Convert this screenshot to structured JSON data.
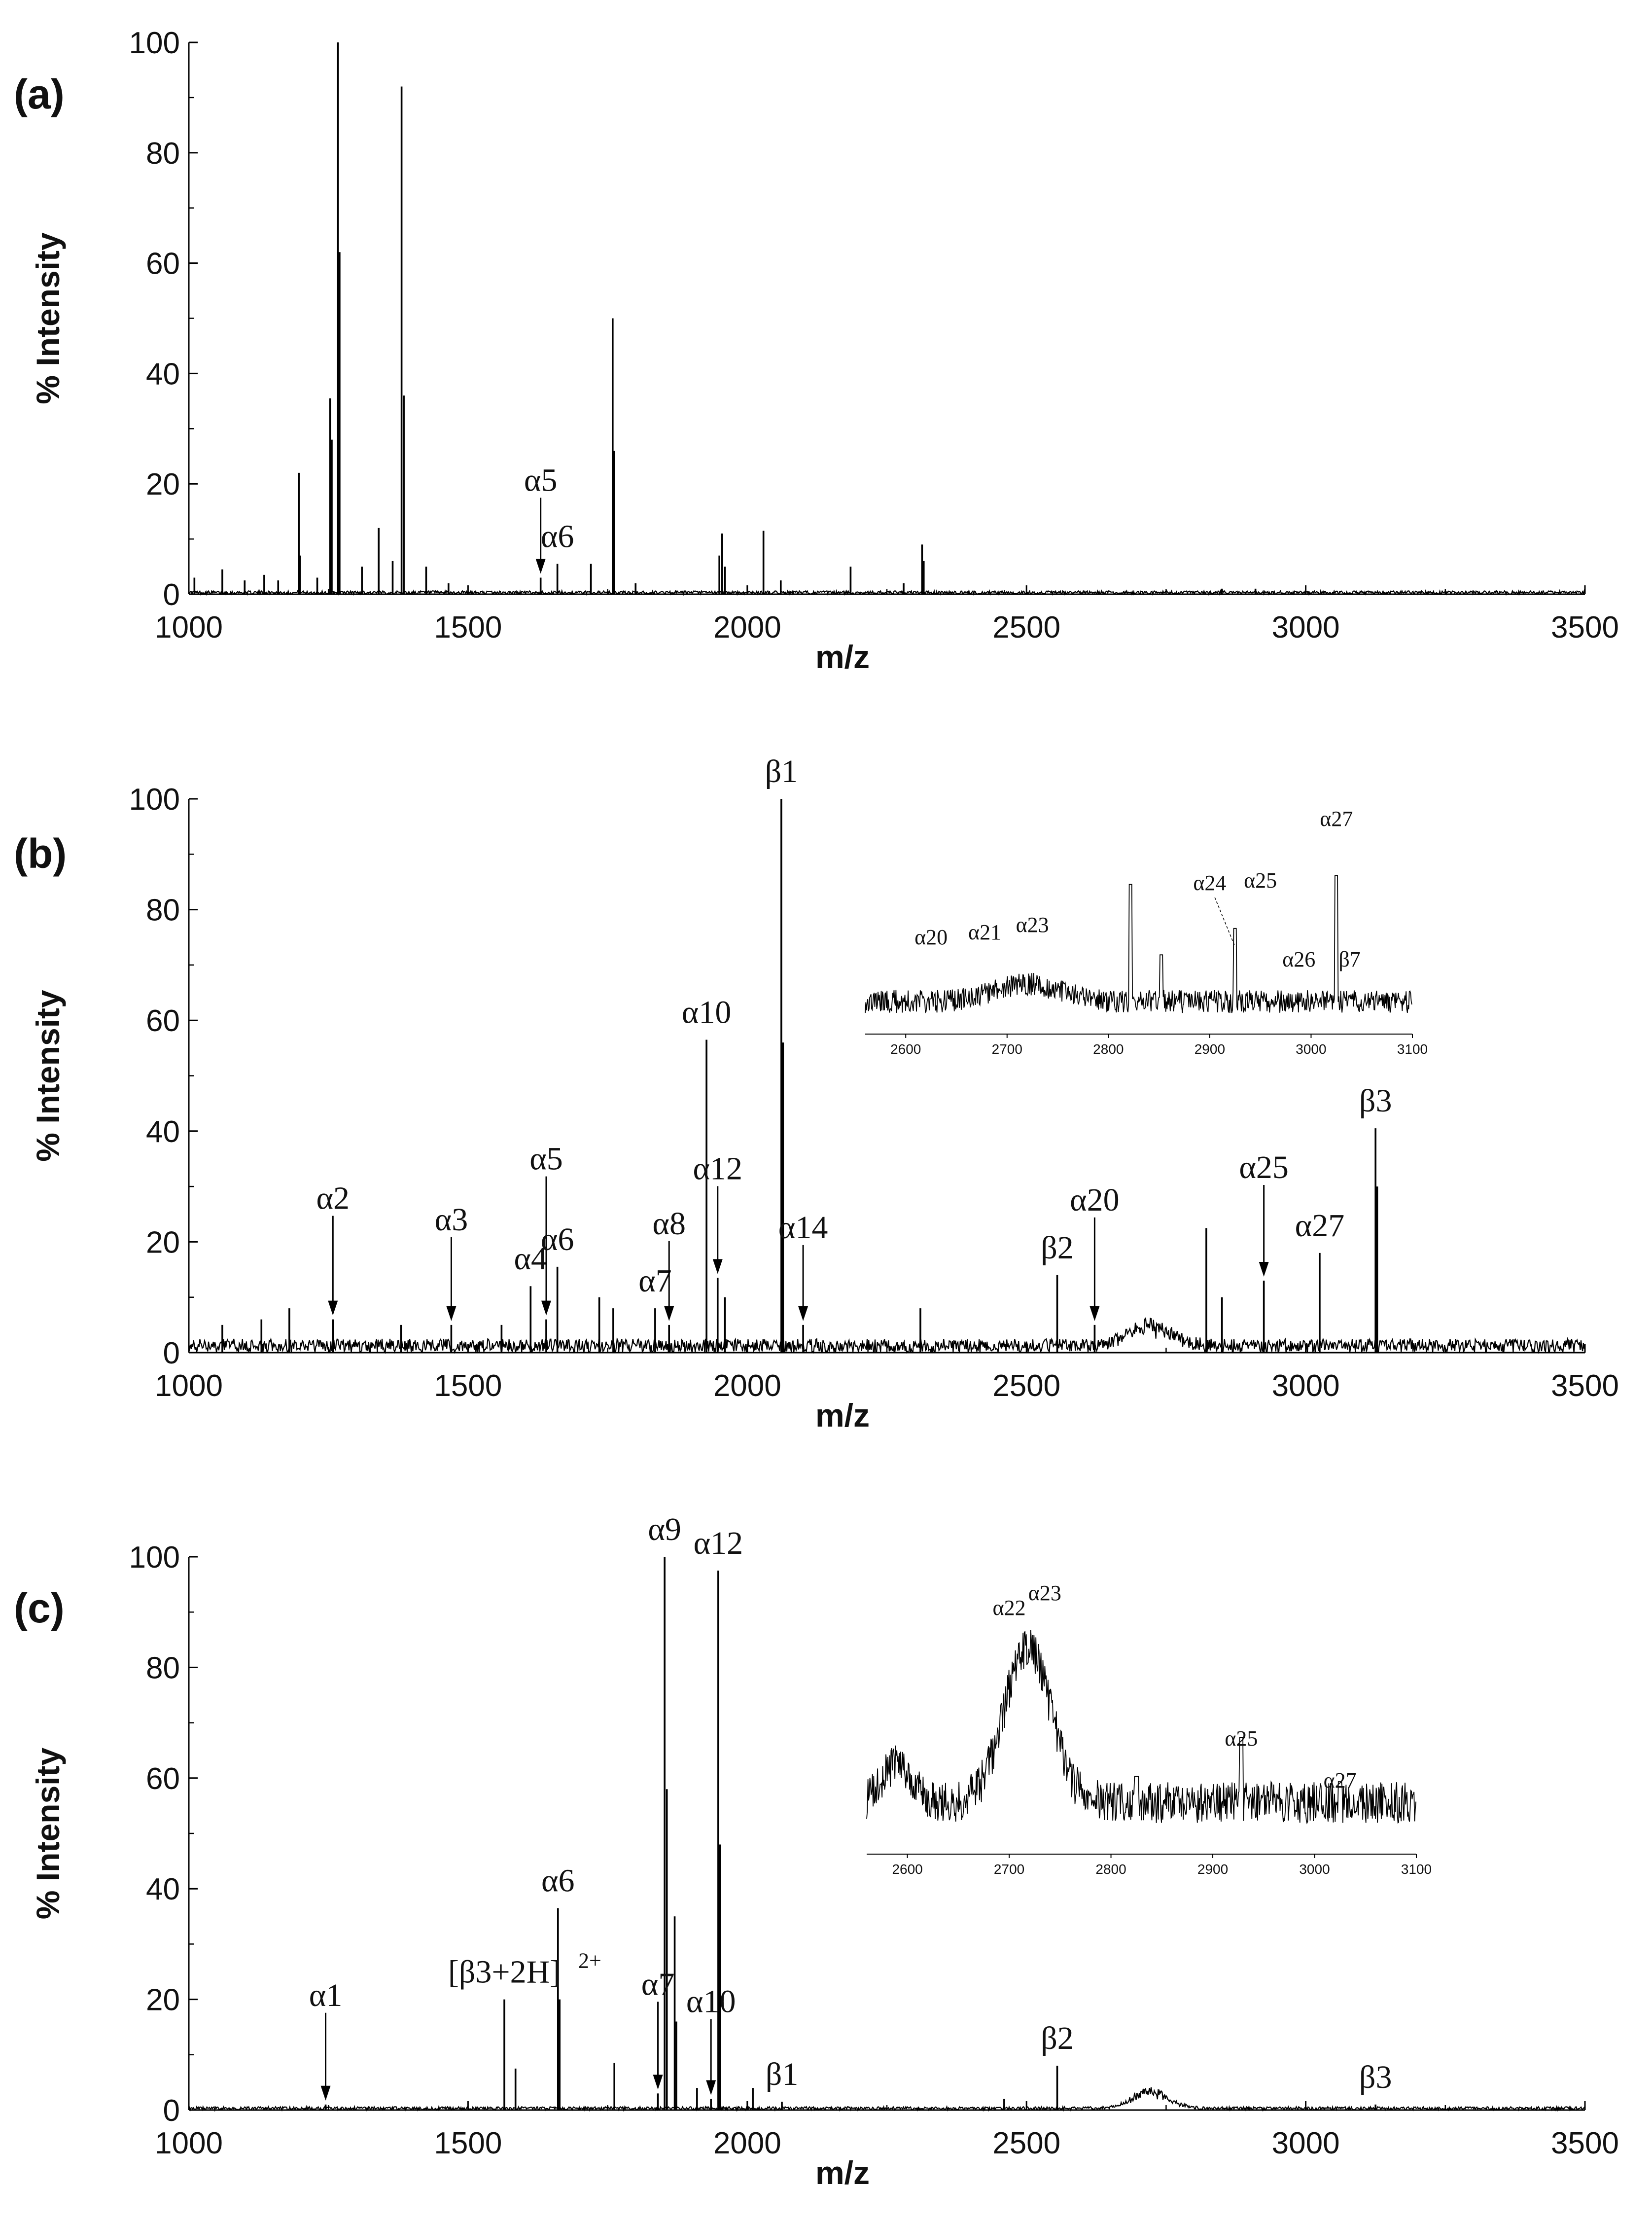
{
  "chart_data": [
    {
      "type": "line",
      "panel_label": "(a)",
      "xlabel": "m/z",
      "ylabel": "% Intensity",
      "xlim": [
        1000,
        3500
      ],
      "ylim": [
        0,
        100
      ],
      "xticks": [
        1000,
        1500,
        2000,
        2500,
        3000,
        3500
      ],
      "yticks": [
        0,
        20,
        40,
        60,
        80,
        100
      ],
      "noise_level": 0.6,
      "peaks": [
        {
          "x": 1010,
          "y": 3
        },
        {
          "x": 1060,
          "y": 4.5
        },
        {
          "x": 1100,
          "y": 2.5
        },
        {
          "x": 1135,
          "y": 3.5
        },
        {
          "x": 1160,
          "y": 2.5
        },
        {
          "x": 1197,
          "y": 22
        },
        {
          "x": 1199,
          "y": 7
        },
        {
          "x": 1230,
          "y": 3
        },
        {
          "x": 1253,
          "y": 35.5
        },
        {
          "x": 1256,
          "y": 28
        },
        {
          "x": 1267,
          "y": 100
        },
        {
          "x": 1270,
          "y": 62
        },
        {
          "x": 1310,
          "y": 5
        },
        {
          "x": 1340,
          "y": 12
        },
        {
          "x": 1365,
          "y": 6
        },
        {
          "x": 1381,
          "y": 92
        },
        {
          "x": 1385,
          "y": 36
        },
        {
          "x": 1425,
          "y": 5
        },
        {
          "x": 1465,
          "y": 2
        },
        {
          "x": 1630,
          "y": 3
        },
        {
          "x": 1660,
          "y": 5.5
        },
        {
          "x": 1720,
          "y": 5.5
        },
        {
          "x": 1759,
          "y": 50
        },
        {
          "x": 1762,
          "y": 26
        },
        {
          "x": 1800,
          "y": 2
        },
        {
          "x": 1950,
          "y": 7
        },
        {
          "x": 1955,
          "y": 11
        },
        {
          "x": 1960,
          "y": 5
        },
        {
          "x": 2029,
          "y": 11.5
        },
        {
          "x": 2060,
          "y": 2.5
        },
        {
          "x": 2185,
          "y": 5
        },
        {
          "x": 2280,
          "y": 2
        },
        {
          "x": 2313,
          "y": 9
        },
        {
          "x": 2316,
          "y": 6
        },
        {
          "x": 2850,
          "y": 1
        },
        {
          "x": 2910,
          "y": 1
        }
      ],
      "annotations": [
        {
          "label": "α5",
          "x": 1630,
          "y": 3,
          "arrow": true
        },
        {
          "label": "α6",
          "x": 1660,
          "y": 5.5
        }
      ]
    },
    {
      "type": "line",
      "panel_label": "(b)",
      "xlabel": "m/z",
      "ylabel": "% Intensity",
      "xlim": [
        1000,
        3500
      ],
      "ylim": [
        0,
        100
      ],
      "xticks": [
        1000,
        1500,
        2000,
        2500,
        3000,
        3500
      ],
      "yticks": [
        0,
        20,
        40,
        60,
        80,
        100
      ],
      "noise_level": 2.5,
      "hump": {
        "center": 2720,
        "width": 55,
        "height": 4
      },
      "peaks": [
        {
          "x": 1060,
          "y": 5
        },
        {
          "x": 1130,
          "y": 6
        },
        {
          "x": 1180,
          "y": 8
        },
        {
          "x": 1258,
          "y": 6
        },
        {
          "x": 1380,
          "y": 5
        },
        {
          "x": 1470,
          "y": 5
        },
        {
          "x": 1560,
          "y": 5
        },
        {
          "x": 1612,
          "y": 12
        },
        {
          "x": 1640,
          "y": 6
        },
        {
          "x": 1660,
          "y": 15.5
        },
        {
          "x": 1735,
          "y": 10
        },
        {
          "x": 1760,
          "y": 8
        },
        {
          "x": 1835,
          "y": 8
        },
        {
          "x": 1860,
          "y": 5
        },
        {
          "x": 1927,
          "y": 56.5
        },
        {
          "x": 1947,
          "y": 13.5
        },
        {
          "x": 1960,
          "y": 10
        },
        {
          "x": 2061,
          "y": 100
        },
        {
          "x": 2064,
          "y": 56
        },
        {
          "x": 2100,
          "y": 5
        },
        {
          "x": 2310,
          "y": 8
        },
        {
          "x": 2555,
          "y": 14
        },
        {
          "x": 2622,
          "y": 5
        },
        {
          "x": 2822,
          "y": 22.5
        },
        {
          "x": 2850,
          "y": 10
        },
        {
          "x": 2925,
          "y": 13
        },
        {
          "x": 3025,
          "y": 18
        },
        {
          "x": 3125,
          "y": 40.5
        },
        {
          "x": 3128,
          "y": 30
        }
      ],
      "annotations": [
        {
          "label": "α2",
          "x": 1258,
          "y": 6,
          "arrow": true
        },
        {
          "label": "α3",
          "x": 1470,
          "y": 5,
          "arrow": true
        },
        {
          "label": "α4",
          "x": 1612,
          "y": 12
        },
        {
          "label": "α5",
          "x": 1640,
          "y": 6,
          "arrow": true
        },
        {
          "label": "α6",
          "x": 1660,
          "y": 15.5
        },
        {
          "label": "α7",
          "x": 1835,
          "y": 8
        },
        {
          "label": "α8",
          "x": 1860,
          "y": 5,
          "arrow": true
        },
        {
          "label": "α10",
          "x": 1927,
          "y": 56.5
        },
        {
          "label": "α12",
          "x": 1947,
          "y": 13.5,
          "arrow": true
        },
        {
          "label": "β1",
          "x": 2061,
          "y": 100
        },
        {
          "label": "α14",
          "x": 2100,
          "y": 5,
          "arrow": true
        },
        {
          "label": "β2",
          "x": 2555,
          "y": 14
        },
        {
          "label": "α20",
          "x": 2622,
          "y": 5,
          "arrow": true
        },
        {
          "label": "α25",
          "x": 2925,
          "y": 13,
          "arrow": true
        },
        {
          "label": "α27",
          "x": 3025,
          "y": 18
        },
        {
          "label": "β3",
          "x": 3125,
          "y": 40.5
        }
      ],
      "inset": {
        "xlim": [
          2560,
          3100
        ],
        "xticks": [
          2600,
          2700,
          2800,
          2900,
          3000,
          3100
        ],
        "labels": [
          "α20",
          "α21",
          "α23",
          "α24",
          "α25",
          "α26",
          "β7",
          "α27"
        ]
      }
    },
    {
      "type": "line",
      "panel_label": "(c)",
      "xlabel": "m/z",
      "ylabel": "% Intensity",
      "xlim": [
        1000,
        3500
      ],
      "ylim": [
        0,
        100
      ],
      "xticks": [
        1000,
        1500,
        2000,
        2500,
        3000,
        3500
      ],
      "yticks": [
        0,
        20,
        40,
        60,
        80,
        100
      ],
      "noise_level": 0.6,
      "hump": {
        "center": 2720,
        "width": 45,
        "height": 3.5
      },
      "peaks": [
        {
          "x": 1245,
          "y": 1
        },
        {
          "x": 1565,
          "y": 20
        },
        {
          "x": 1585,
          "y": 7.5
        },
        {
          "x": 1661,
          "y": 36.5
        },
        {
          "x": 1664,
          "y": 20
        },
        {
          "x": 1762,
          "y": 8.5
        },
        {
          "x": 1840,
          "y": 3
        },
        {
          "x": 1852,
          "y": 100
        },
        {
          "x": 1856,
          "y": 58
        },
        {
          "x": 1870,
          "y": 35
        },
        {
          "x": 1873,
          "y": 16
        },
        {
          "x": 1910,
          "y": 4
        },
        {
          "x": 1935,
          "y": 2
        },
        {
          "x": 1948,
          "y": 97.5
        },
        {
          "x": 1951,
          "y": 48
        },
        {
          "x": 2010,
          "y": 4
        },
        {
          "x": 2062,
          "y": 1.5
        },
        {
          "x": 2460,
          "y": 2
        },
        {
          "x": 2555,
          "y": 8
        },
        {
          "x": 3125,
          "y": 1
        }
      ],
      "annotations": [
        {
          "label": "α1",
          "x": 1245,
          "y": 1,
          "arrow": true
        },
        {
          "label": "[β3+2H]",
          "superscript": "2+",
          "x": 1565,
          "y": 20
        },
        {
          "label": "α6",
          "x": 1661,
          "y": 36.5
        },
        {
          "label": "α7",
          "x": 1840,
          "y": 3,
          "arrow": true
        },
        {
          "label": "α9",
          "x": 1852,
          "y": 100
        },
        {
          "label": "α12",
          "x": 1948,
          "y": 97.5
        },
        {
          "label": "α10",
          "x": 1935,
          "y": 2,
          "arrow": true
        },
        {
          "label": "β1",
          "x": 2062,
          "y": 1.5
        },
        {
          "label": "β2",
          "x": 2555,
          "y": 8
        },
        {
          "label": "β3",
          "x": 3125,
          "y": 1
        }
      ],
      "inset": {
        "xlim": [
          2560,
          3100
        ],
        "xticks": [
          2600,
          2700,
          2800,
          2900,
          3000,
          3100
        ],
        "labels": [
          "α22",
          "α23",
          "α25",
          "α27"
        ]
      }
    }
  ]
}
